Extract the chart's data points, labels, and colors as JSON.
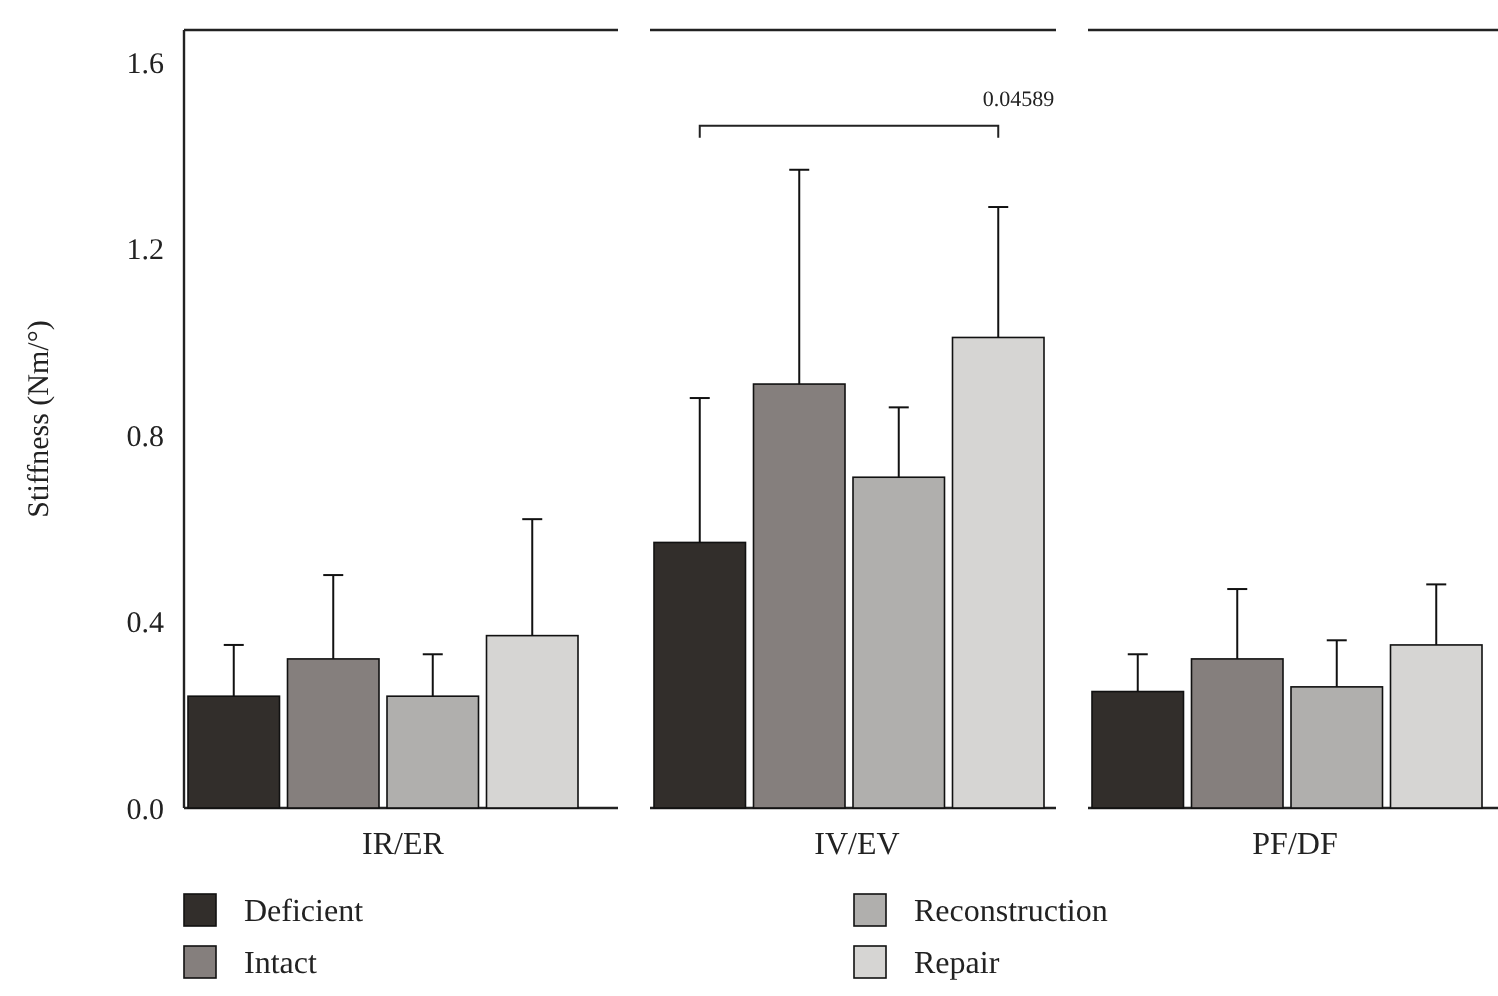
{
  "chart_data": {
    "type": "bar",
    "ylabel": "Stiffness (Nm/°)",
    "categories": [
      "IR/ER",
      "IV/EV",
      "PF/DF"
    ],
    "series": [
      {
        "name": "Deficient",
        "color": "#322e2b",
        "values": [
          0.24,
          0.57,
          0.25
        ],
        "errors": [
          0.11,
          0.31,
          0.08
        ]
      },
      {
        "name": "Intact",
        "color": "#857f7d",
        "values": [
          0.32,
          0.91,
          0.32
        ],
        "errors": [
          0.18,
          0.46,
          0.15
        ]
      },
      {
        "name": "Reconstruction",
        "color": "#b0afad",
        "values": [
          0.24,
          0.71,
          0.26
        ],
        "errors": [
          0.09,
          0.15,
          0.1
        ]
      },
      {
        "name": "Repair",
        "color": "#d6d5d3",
        "values": [
          0.37,
          1.01,
          0.35
        ],
        "errors": [
          0.25,
          0.28,
          0.13
        ]
      }
    ],
    "ylim": [
      0,
      1.67
    ],
    "yticks": [
      {
        "value": 0,
        "label": "0.0"
      },
      0.4,
      0.8,
      1.2,
      1.6
    ],
    "annotations": [
      "0.04589"
    ],
    "legend": "bottom",
    "grid": false
  }
}
